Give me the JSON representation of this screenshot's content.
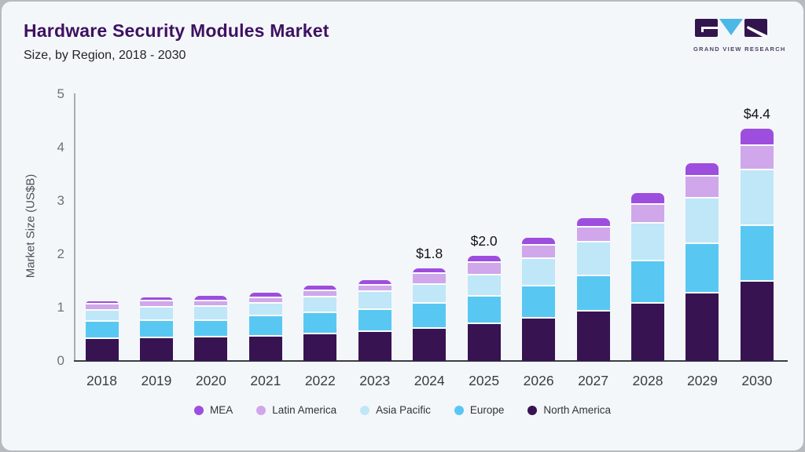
{
  "header": {
    "title": "Hardware Security Modules Market",
    "subtitle": "Size, by Region, 2018 - 2030",
    "logo_brand": "GRAND VIEW RESEARCH"
  },
  "chart_data": {
    "type": "bar",
    "stacked": true,
    "title": "Hardware Security Modules Market Size, by Region, 2018 - 2030",
    "xlabel": "",
    "ylabel": "Market Size (US$B)",
    "ylim": [
      0,
      5
    ],
    "yticks": [
      0,
      1,
      2,
      3,
      4,
      5
    ],
    "grid": false,
    "legend_position": "bottom",
    "categories": [
      "2018",
      "2019",
      "2020",
      "2021",
      "2022",
      "2023",
      "2024",
      "2025",
      "2026",
      "2027",
      "2028",
      "2029",
      "2030"
    ],
    "series": [
      {
        "name": "North America",
        "color": "#371352",
        "values": [
          0.41,
          0.43,
          0.44,
          0.46,
          0.5,
          0.55,
          0.6,
          0.69,
          0.8,
          0.93,
          1.07,
          1.26,
          1.48
        ]
      },
      {
        "name": "Europe",
        "color": "#58c8f2",
        "values": [
          0.32,
          0.32,
          0.31,
          0.38,
          0.39,
          0.41,
          0.47,
          0.52,
          0.6,
          0.66,
          0.8,
          0.92,
          1.05
        ]
      },
      {
        "name": "Asia Pacific",
        "color": "#bfe7f8",
        "values": [
          0.21,
          0.25,
          0.27,
          0.24,
          0.29,
          0.34,
          0.36,
          0.4,
          0.51,
          0.63,
          0.7,
          0.85,
          1.04
        ]
      },
      {
        "name": "Latin America",
        "color": "#d0a7eb",
        "values": [
          0.12,
          0.12,
          0.11,
          0.11,
          0.12,
          0.12,
          0.21,
          0.24,
          0.25,
          0.28,
          0.36,
          0.41,
          0.46
        ]
      },
      {
        "name": "MEA",
        "color": "#9d4ede",
        "values": [
          0.06,
          0.07,
          0.1,
          0.11,
          0.11,
          0.11,
          0.11,
          0.13,
          0.14,
          0.18,
          0.22,
          0.25,
          0.32
        ]
      }
    ],
    "totals": [
      1.12,
      1.19,
      1.23,
      1.3,
      1.41,
      1.53,
      1.75,
      1.98,
      2.3,
      2.68,
      3.15,
      3.69,
      4.35
    ],
    "value_labels": [
      {
        "category": "2024",
        "text": "$1.8"
      },
      {
        "category": "2025",
        "text": "$2.0"
      },
      {
        "category": "2030",
        "text": "$4.4"
      }
    ],
    "legend_order": [
      "MEA",
      "Latin America",
      "Asia Pacific",
      "Europe",
      "North America"
    ]
  },
  "colors": {
    "card_background": "#f4f7fa",
    "card_border": "#b7babe",
    "title": "#3e1161",
    "axis_line": "#a9adb3",
    "baseline": "#3a3f46",
    "logo_block": "#33154e",
    "logo_triangle": "#4cb8e6"
  }
}
